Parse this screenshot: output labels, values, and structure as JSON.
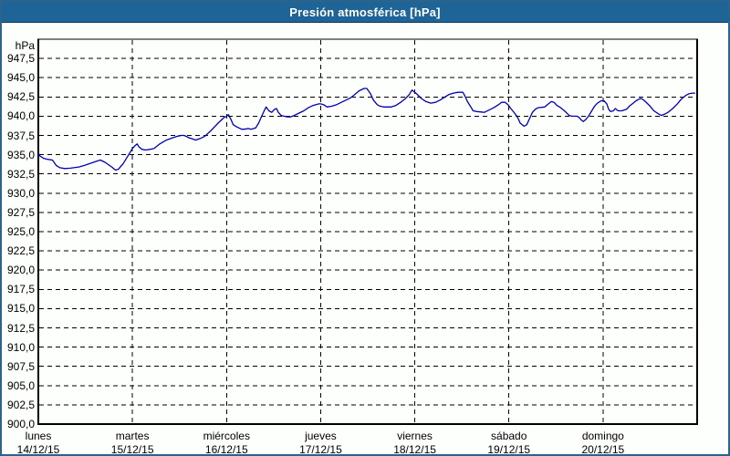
{
  "window": {
    "title": "Presión atmosférica [hPa]"
  },
  "colors": {
    "titlebar_bg": "#1e6496",
    "titlebar_text": "#ffffff",
    "outer_border": "#2a648c",
    "plot_frame": "#000000",
    "gridlines": "#000000",
    "series_line": "#0000b2",
    "background": "#fdfffd",
    "label_text": "#000000"
  },
  "chart_data": {
    "type": "line",
    "title": "Presión atmosférica [hPa]",
    "grid": "dashed",
    "legend": "none",
    "y_axis": {
      "unit": "hPa",
      "min": 900,
      "max": 950,
      "max_tick": 947.5,
      "tick_step": 2.5,
      "ticks": [
        "947,5",
        "945,0",
        "942,5",
        "940,0",
        "937,5",
        "935,0",
        "932,5",
        "930,0",
        "927,5",
        "925,0",
        "922,5",
        "920,0",
        "917,5",
        "915,0",
        "912,5",
        "910,0",
        "907,5",
        "905,0",
        "902,5",
        "900,0"
      ]
    },
    "x_axis": {
      "days": [
        {
          "name": "lunes",
          "date": "14/12/15"
        },
        {
          "name": "martes",
          "date": "15/12/15"
        },
        {
          "name": "miércoles",
          "date": "16/12/15"
        },
        {
          "name": "jueves",
          "date": "17/12/15"
        },
        {
          "name": "viernes",
          "date": "18/12/15"
        },
        {
          "name": "sábado",
          "date": "19/12/15"
        },
        {
          "name": "domingo",
          "date": "20/12/15"
        }
      ]
    },
    "series": [
      {
        "name": "Presión atmosférica",
        "color": "#0000b2",
        "x_unit": "days_from_start",
        "points": [
          [
            0.0,
            935.2
          ],
          [
            0.02,
            934.8
          ],
          [
            0.06,
            934.5
          ],
          [
            0.1,
            934.4
          ],
          [
            0.15,
            934.3
          ],
          [
            0.19,
            933.6
          ],
          [
            0.23,
            933.3
          ],
          [
            0.28,
            933.2
          ],
          [
            0.34,
            933.25
          ],
          [
            0.43,
            933.4
          ],
          [
            0.49,
            933.6
          ],
          [
            0.56,
            933.9
          ],
          [
            0.63,
            934.2
          ],
          [
            0.66,
            934.3
          ],
          [
            0.71,
            934.0
          ],
          [
            0.78,
            933.4
          ],
          [
            0.82,
            933.0
          ],
          [
            0.85,
            933.1
          ],
          [
            0.9,
            933.8
          ],
          [
            0.95,
            934.8
          ],
          [
            1.0,
            935.8
          ],
          [
            1.03,
            936.2
          ],
          [
            1.05,
            936.4
          ],
          [
            1.07,
            936.0
          ],
          [
            1.1,
            935.7
          ],
          [
            1.14,
            935.6
          ],
          [
            1.19,
            935.7
          ],
          [
            1.23,
            935.8
          ],
          [
            1.29,
            936.4
          ],
          [
            1.36,
            936.9
          ],
          [
            1.43,
            937.2
          ],
          [
            1.48,
            937.4
          ],
          [
            1.52,
            937.5
          ],
          [
            1.55,
            937.5
          ],
          [
            1.6,
            937.2
          ],
          [
            1.65,
            937.0
          ],
          [
            1.67,
            936.9
          ],
          [
            1.72,
            937.1
          ],
          [
            1.77,
            937.4
          ],
          [
            1.84,
            938.2
          ],
          [
            1.91,
            939.1
          ],
          [
            1.97,
            939.8
          ],
          [
            2.0,
            940.0
          ],
          [
            2.02,
            940.2
          ],
          [
            2.05,
            939.5
          ],
          [
            2.07,
            938.9
          ],
          [
            2.11,
            938.6
          ],
          [
            2.16,
            938.3
          ],
          [
            2.19,
            938.3
          ],
          [
            2.23,
            938.4
          ],
          [
            2.26,
            938.3
          ],
          [
            2.29,
            938.4
          ],
          [
            2.31,
            938.5
          ],
          [
            2.34,
            939.1
          ],
          [
            2.37,
            939.9
          ],
          [
            2.4,
            940.7
          ],
          [
            2.42,
            941.2
          ],
          [
            2.45,
            940.7
          ],
          [
            2.48,
            940.5
          ],
          [
            2.51,
            940.9
          ],
          [
            2.53,
            941.0
          ],
          [
            2.55,
            940.5
          ],
          [
            2.58,
            940.1
          ],
          [
            2.61,
            940.0
          ],
          [
            2.65,
            939.9
          ],
          [
            2.68,
            939.9
          ],
          [
            2.72,
            940.1
          ],
          [
            2.77,
            940.4
          ],
          [
            2.82,
            940.7
          ],
          [
            2.87,
            941.1
          ],
          [
            2.92,
            941.4
          ],
          [
            2.98,
            941.6
          ],
          [
            3.0,
            941.6
          ],
          [
            3.03,
            941.5
          ],
          [
            3.07,
            941.2
          ],
          [
            3.12,
            941.3
          ],
          [
            3.17,
            941.5
          ],
          [
            3.22,
            941.8
          ],
          [
            3.27,
            942.1
          ],
          [
            3.32,
            942.4
          ],
          [
            3.36,
            942.8
          ],
          [
            3.41,
            943.3
          ],
          [
            3.46,
            943.6
          ],
          [
            3.49,
            943.6
          ],
          [
            3.53,
            942.9
          ],
          [
            3.56,
            942.1
          ],
          [
            3.6,
            941.5
          ],
          [
            3.63,
            941.3
          ],
          [
            3.67,
            941.2
          ],
          [
            3.75,
            941.2
          ],
          [
            3.8,
            941.4
          ],
          [
            3.85,
            941.8
          ],
          [
            3.9,
            942.3
          ],
          [
            3.94,
            942.8
          ],
          [
            3.97,
            943.4
          ],
          [
            3.99,
            943.2
          ],
          [
            4.02,
            942.9
          ],
          [
            4.07,
            942.3
          ],
          [
            4.12,
            941.9
          ],
          [
            4.17,
            941.7
          ],
          [
            4.22,
            941.8
          ],
          [
            4.27,
            942.1
          ],
          [
            4.31,
            942.4
          ],
          [
            4.36,
            942.8
          ],
          [
            4.41,
            943.0
          ],
          [
            4.46,
            943.1
          ],
          [
            4.51,
            943.1
          ],
          [
            4.53,
            942.7
          ],
          [
            4.56,
            941.9
          ],
          [
            4.6,
            941.1
          ],
          [
            4.62,
            940.7
          ],
          [
            4.66,
            940.6
          ],
          [
            4.74,
            940.5
          ],
          [
            4.79,
            940.8
          ],
          [
            4.84,
            941.1
          ],
          [
            4.89,
            941.5
          ],
          [
            4.92,
            941.8
          ],
          [
            4.96,
            941.8
          ],
          [
            4.99,
            941.5
          ],
          [
            5.02,
            941.0
          ],
          [
            5.06,
            940.4
          ],
          [
            5.09,
            939.9
          ],
          [
            5.12,
            939.1
          ],
          [
            5.16,
            938.7
          ],
          [
            5.19,
            938.9
          ],
          [
            5.22,
            939.7
          ],
          [
            5.25,
            940.5
          ],
          [
            5.28,
            940.9
          ],
          [
            5.31,
            941.1
          ],
          [
            5.38,
            941.2
          ],
          [
            5.41,
            941.5
          ],
          [
            5.45,
            941.9
          ],
          [
            5.48,
            941.8
          ],
          [
            5.51,
            941.4
          ],
          [
            5.55,
            941.1
          ],
          [
            5.59,
            940.7
          ],
          [
            5.64,
            940.1
          ],
          [
            5.67,
            940.0
          ],
          [
            5.72,
            940.0
          ],
          [
            5.74,
            939.9
          ],
          [
            5.77,
            939.5
          ],
          [
            5.79,
            939.3
          ],
          [
            5.82,
            939.6
          ],
          [
            5.85,
            940.1
          ],
          [
            5.88,
            940.7
          ],
          [
            5.91,
            941.3
          ],
          [
            5.94,
            941.7
          ],
          [
            5.98,
            942.0
          ],
          [
            6.01,
            942.0
          ],
          [
            6.04,
            941.6
          ],
          [
            6.06,
            940.9
          ],
          [
            6.08,
            940.6
          ],
          [
            6.11,
            940.7
          ],
          [
            6.13,
            941.0
          ],
          [
            6.16,
            940.7
          ],
          [
            6.2,
            940.7
          ],
          [
            6.25,
            940.9
          ],
          [
            6.28,
            941.3
          ],
          [
            6.32,
            941.7
          ],
          [
            6.35,
            942.0
          ],
          [
            6.38,
            942.2
          ],
          [
            6.4,
            942.3
          ],
          [
            6.42,
            942.2
          ],
          [
            6.45,
            941.9
          ],
          [
            6.5,
            941.3
          ],
          [
            6.54,
            940.7
          ],
          [
            6.59,
            940.3
          ],
          [
            6.62,
            940.1
          ],
          [
            6.66,
            940.3
          ],
          [
            6.69,
            940.5
          ],
          [
            6.74,
            941.0
          ],
          [
            6.79,
            941.6
          ],
          [
            6.83,
            942.2
          ],
          [
            6.88,
            942.7
          ],
          [
            6.91,
            942.9
          ],
          [
            6.95,
            943.0
          ],
          [
            6.98,
            943.0
          ]
        ]
      }
    ]
  }
}
